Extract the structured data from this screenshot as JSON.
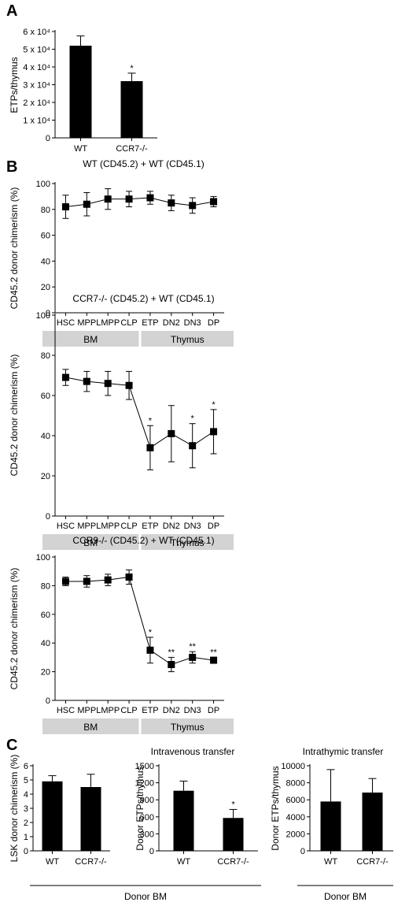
{
  "panels": {
    "A": "A",
    "B": "B",
    "C": "C"
  },
  "chart_data": [
    {
      "id": "A",
      "type": "bar",
      "categories": [
        "WT",
        "CCR7-/-"
      ],
      "values": [
        52000,
        32000
      ],
      "errors": [
        5500,
        4500
      ],
      "sig": [
        "",
        "*"
      ],
      "ylabel": "ETPs/thymus",
      "ylim": [
        0,
        60000
      ],
      "yticks": [
        "0",
        "1 x 10⁴",
        "2 x 10⁴",
        "3 x 10⁴",
        "4 x 10⁴",
        "5 x 10⁴",
        "6 x 10⁴"
      ],
      "color": "#000000"
    },
    {
      "id": "B1",
      "type": "line",
      "title": "WT (CD45.2) + WT (CD45.1)",
      "categories": [
        "HSC",
        "MPP",
        "LMPP",
        "CLP",
        "ETP",
        "DN2",
        "DN3",
        "DP"
      ],
      "values": [
        82,
        84,
        88,
        88,
        89,
        85,
        83,
        86
      ],
      "errors": [
        9,
        9,
        8,
        6,
        5,
        6,
        6,
        4
      ],
      "sig": [
        "",
        "",
        "",
        "",
        "",
        "",
        "",
        ""
      ],
      "ylabel": "CD45.2 donor chimerism (%)",
      "ylim": [
        0,
        100
      ],
      "yticks": [
        "0",
        "20",
        "40",
        "60",
        "80",
        "100"
      ],
      "groups": [
        "BM",
        "Thymus"
      ]
    },
    {
      "id": "B2",
      "type": "line",
      "title": "CCR7-/- (CD45.2) + WT (CD45.1)",
      "categories": [
        "HSC",
        "MPP",
        "LMPP",
        "CLP",
        "ETP",
        "DN2",
        "DN3",
        "DP"
      ],
      "values": [
        69,
        67,
        66,
        65,
        34,
        41,
        35,
        42
      ],
      "errors": [
        4,
        5,
        6,
        7,
        11,
        14,
        11,
        11
      ],
      "sig": [
        "",
        "",
        "",
        "",
        "*",
        "",
        "*",
        "*"
      ],
      "ylabel": "CD45.2 donor chimerism (%)",
      "ylim": [
        0,
        100
      ],
      "yticks": [
        "0",
        "20",
        "40",
        "60",
        "80",
        "100"
      ],
      "groups": [
        "BM",
        "Thymus"
      ]
    },
    {
      "id": "B3",
      "type": "line",
      "title": "CCR9-/- (CD45.2) + WT (CD45.1)",
      "categories": [
        "HSC",
        "MPP",
        "LMPP",
        "CLP",
        "ETP",
        "DN2",
        "DN3",
        "DP"
      ],
      "values": [
        83,
        83,
        84,
        86,
        35,
        25,
        30,
        28
      ],
      "errors": [
        3,
        4,
        4,
        5,
        9,
        5,
        4,
        2
      ],
      "sig": [
        "",
        "",
        "",
        "",
        "*",
        "**",
        "**",
        "**"
      ],
      "ylabel": "CD45.2 donor chimerism (%)",
      "ylim": [
        0,
        100
      ],
      "yticks": [
        "0",
        "20",
        "40",
        "60",
        "80",
        "100"
      ],
      "groups": [
        "BM",
        "Thymus"
      ]
    },
    {
      "id": "C1",
      "type": "bar",
      "categories": [
        "WT",
        "CCR7-/-"
      ],
      "values": [
        4.9,
        4.5
      ],
      "errors": [
        0.4,
        0.9
      ],
      "sig": [
        "",
        ""
      ],
      "ylabel": "LSK donor chimerism (%)",
      "ylim": [
        0,
        6
      ],
      "yticks": [
        "0",
        "1",
        "2",
        "3",
        "4",
        "5",
        "6"
      ],
      "color": "#000000"
    },
    {
      "id": "C2",
      "type": "bar",
      "categories": [
        "WT",
        "CCR7-/-"
      ],
      "values": [
        1060,
        580
      ],
      "errors": [
        170,
        150
      ],
      "sig": [
        "",
        "*"
      ],
      "ylabel": "Donor ETPs/thymus",
      "ylim": [
        0,
        1500
      ],
      "yticks": [
        "0",
        "300",
        "600",
        "900",
        "1200",
        "1500"
      ],
      "color": "#000000"
    },
    {
      "id": "C3",
      "type": "bar",
      "categories": [
        "WT",
        "CCR7-/-"
      ],
      "values": [
        5800,
        6850
      ],
      "errors": [
        3750,
        1650
      ],
      "sig": [
        "",
        ""
      ],
      "ylabel": "Donor ETPs/thymus",
      "ylim": [
        0,
        10000
      ],
      "yticks": [
        "0",
        "2000",
        "4000",
        "6000",
        "8000",
        "10000"
      ],
      "color": "#000000"
    }
  ],
  "panel_c": {
    "iv_title": "Intravenous transfer",
    "it_title": "Intrathymic transfer",
    "donor_bm": "Donor BM"
  }
}
